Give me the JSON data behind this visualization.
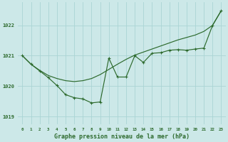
{
  "background_color": "#cce8e8",
  "grid_color": "#aad4d4",
  "line_color": "#2d6a2d",
  "title": "Graphe pression niveau de la mer (hPa)",
  "xlim": [
    -0.5,
    23.5
  ],
  "ylim": [
    1018.75,
    1022.75
  ],
  "yticks": [
    1019,
    1020,
    1021,
    1022
  ],
  "xticks": [
    0,
    1,
    2,
    3,
    4,
    5,
    6,
    7,
    8,
    9,
    10,
    11,
    12,
    13,
    14,
    15,
    16,
    17,
    18,
    19,
    20,
    21,
    22,
    23
  ],
  "smooth_x": [
    0,
    1,
    2,
    3,
    4,
    5,
    6,
    7,
    8,
    9,
    10,
    11,
    12,
    13,
    14,
    15,
    16,
    17,
    18,
    19,
    20,
    21,
    22,
    23
  ],
  "smooth_y": [
    1021.0,
    1020.72,
    1020.52,
    1020.35,
    1020.25,
    1020.18,
    1020.15,
    1020.18,
    1020.25,
    1020.38,
    1020.55,
    1020.72,
    1020.88,
    1021.02,
    1021.12,
    1021.22,
    1021.32,
    1021.42,
    1021.52,
    1021.6,
    1021.68,
    1021.8,
    1022.0,
    1022.48
  ],
  "detail_x": [
    0,
    1,
    2,
    3,
    4,
    5,
    6,
    7,
    8,
    9,
    10,
    11,
    12,
    13,
    14,
    15,
    16,
    17,
    18,
    19,
    20,
    21,
    22,
    23
  ],
  "detail_y": [
    1021.0,
    1020.72,
    1020.5,
    1020.28,
    1020.02,
    1019.72,
    1019.62,
    1019.58,
    1019.45,
    1019.48,
    1020.92,
    1020.3,
    1020.3,
    1021.0,
    1020.78,
    1021.08,
    1021.1,
    1021.18,
    1021.2,
    1021.18,
    1021.22,
    1021.25,
    1022.0,
    1022.48
  ]
}
